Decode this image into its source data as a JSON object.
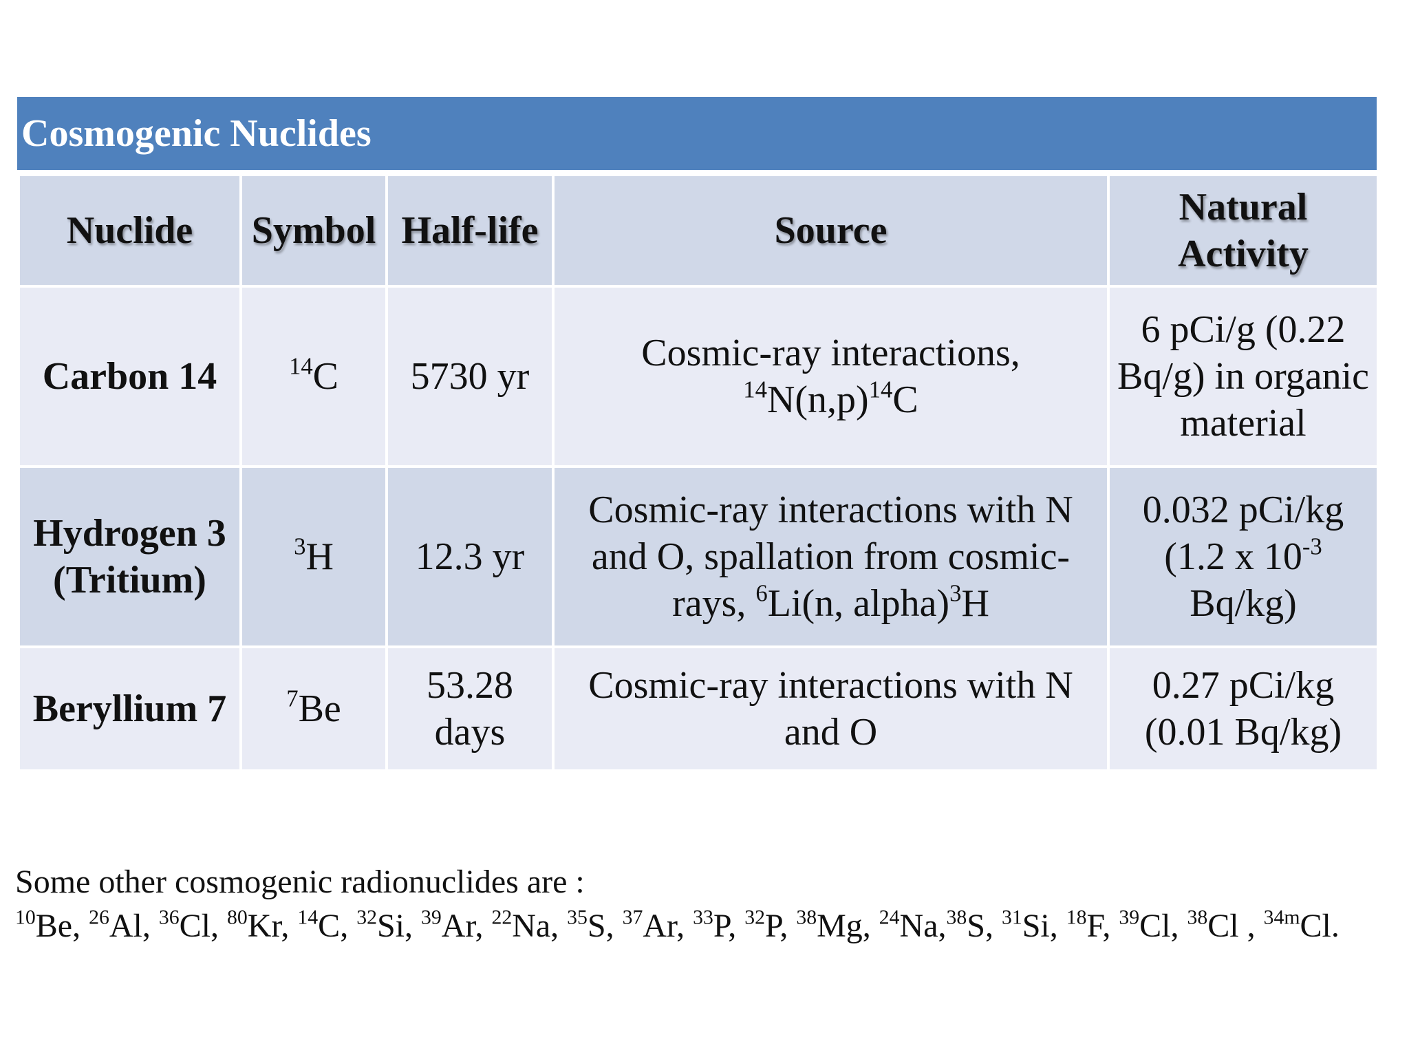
{
  "table": {
    "title": "Cosmogenic Nuclides",
    "headers": [
      "Nuclide",
      "Symbol",
      "Half-life",
      "Source",
      "Natural Activity"
    ],
    "rows": [
      {
        "nuclide": "Carbon 14",
        "symbol": {
          "mass": "14",
          "element": "C"
        },
        "half_life": "5730 yr",
        "source": {
          "text": "Cosmic-ray interactions, ",
          "sup1": "14",
          "mid": "N(n,p)",
          "sup2": "14",
          "end": "C"
        },
        "activity": "6 pCi/g (0.22 Bq/g) in organic material"
      },
      {
        "nuclide_line1": "Hydrogen 3",
        "nuclide_line2": "(Tritium)",
        "symbol": {
          "mass": "3",
          "element": "H"
        },
        "half_life": "12.3 yr",
        "source": {
          "text": "Cosmic-ray interactions with N and O, spallation from cosmic-rays, ",
          "sup1": "6",
          "mid": "Li(n, alpha)",
          "sup2": "3",
          "end": "H"
        },
        "activity": {
          "main": "0.032 pCi/kg (1.2 x 10",
          "sup": "-3",
          "end": " Bq/kg)"
        }
      },
      {
        "nuclide": "Beryllium 7",
        "symbol": {
          "mass": "7",
          "element": "Be"
        },
        "half_life": "53.28 days",
        "source": {
          "text": "Cosmic-ray interactions with N and O"
        },
        "activity": "0.27 pCi/kg (0.01 Bq/kg)"
      }
    ]
  },
  "footnote": {
    "intro": "Some other cosmogenic radionuclides are :",
    "nuclides": [
      {
        "mass": "10",
        "element": "Be",
        "sep": ", "
      },
      {
        "mass": "26",
        "element": "Al",
        "sep": ", "
      },
      {
        "mass": "36",
        "element": "Cl",
        "sep": ", "
      },
      {
        "mass": "80",
        "element": "Kr",
        "sep": ", "
      },
      {
        "mass": "14",
        "element": "C",
        "sep": ", "
      },
      {
        "mass": "32",
        "element": "Si",
        "sep": ", "
      },
      {
        "mass": "39",
        "element": "Ar",
        "sep": ", "
      },
      {
        "mass": "22",
        "element": "Na",
        "sep": ", "
      },
      {
        "mass": "35",
        "element": "S",
        "sep": ", "
      },
      {
        "mass": "37",
        "element": "Ar",
        "sep": ", "
      },
      {
        "mass": "33",
        "element": "P",
        "sep": ", "
      },
      {
        "mass": "32",
        "element": "P",
        "sep": ", "
      },
      {
        "mass": "38",
        "element": "Mg",
        "sep": ", "
      },
      {
        "mass": "24",
        "element": "Na",
        "sep": ","
      },
      {
        "mass": "38",
        "element": "S",
        "sep": ", "
      },
      {
        "mass": "31",
        "element": "Si",
        "sep": ", "
      },
      {
        "mass": "18",
        "element": "F",
        "sep": ", "
      },
      {
        "mass": "39",
        "element": "Cl",
        "sep": ", "
      },
      {
        "mass": "38",
        "element": "Cl",
        "sep": " , "
      },
      {
        "mass": "34m",
        "element": "Cl",
        "sep": "."
      }
    ]
  }
}
